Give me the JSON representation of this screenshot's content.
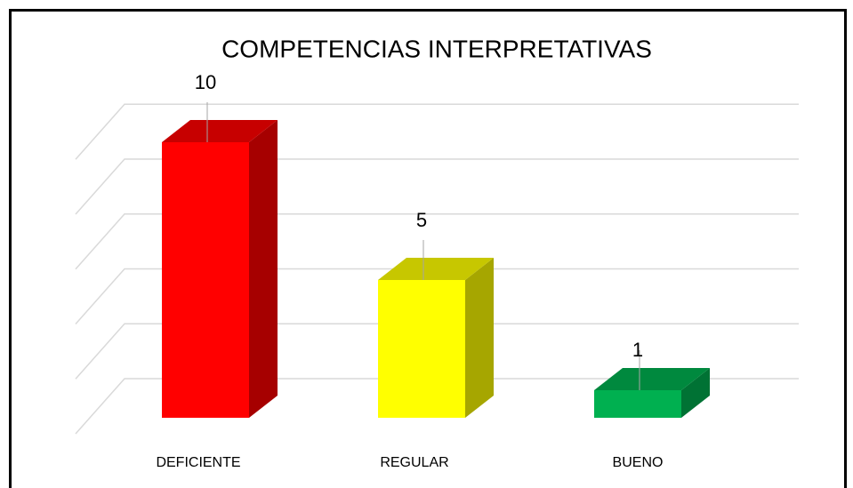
{
  "chart_data": {
    "type": "bar3d",
    "title": "COMPETENCIAS INTERPRETATIVAS",
    "categories": [
      "DEFICIENTE",
      "REGULAR",
      "BUENO"
    ],
    "values": [
      10,
      5,
      1
    ],
    "colors": [
      "#ff0000",
      "#ffff00",
      "#00b050"
    ],
    "ylim": [
      0,
      10
    ],
    "yticks": [
      0,
      2,
      4,
      6,
      8,
      10
    ],
    "grid": true
  }
}
